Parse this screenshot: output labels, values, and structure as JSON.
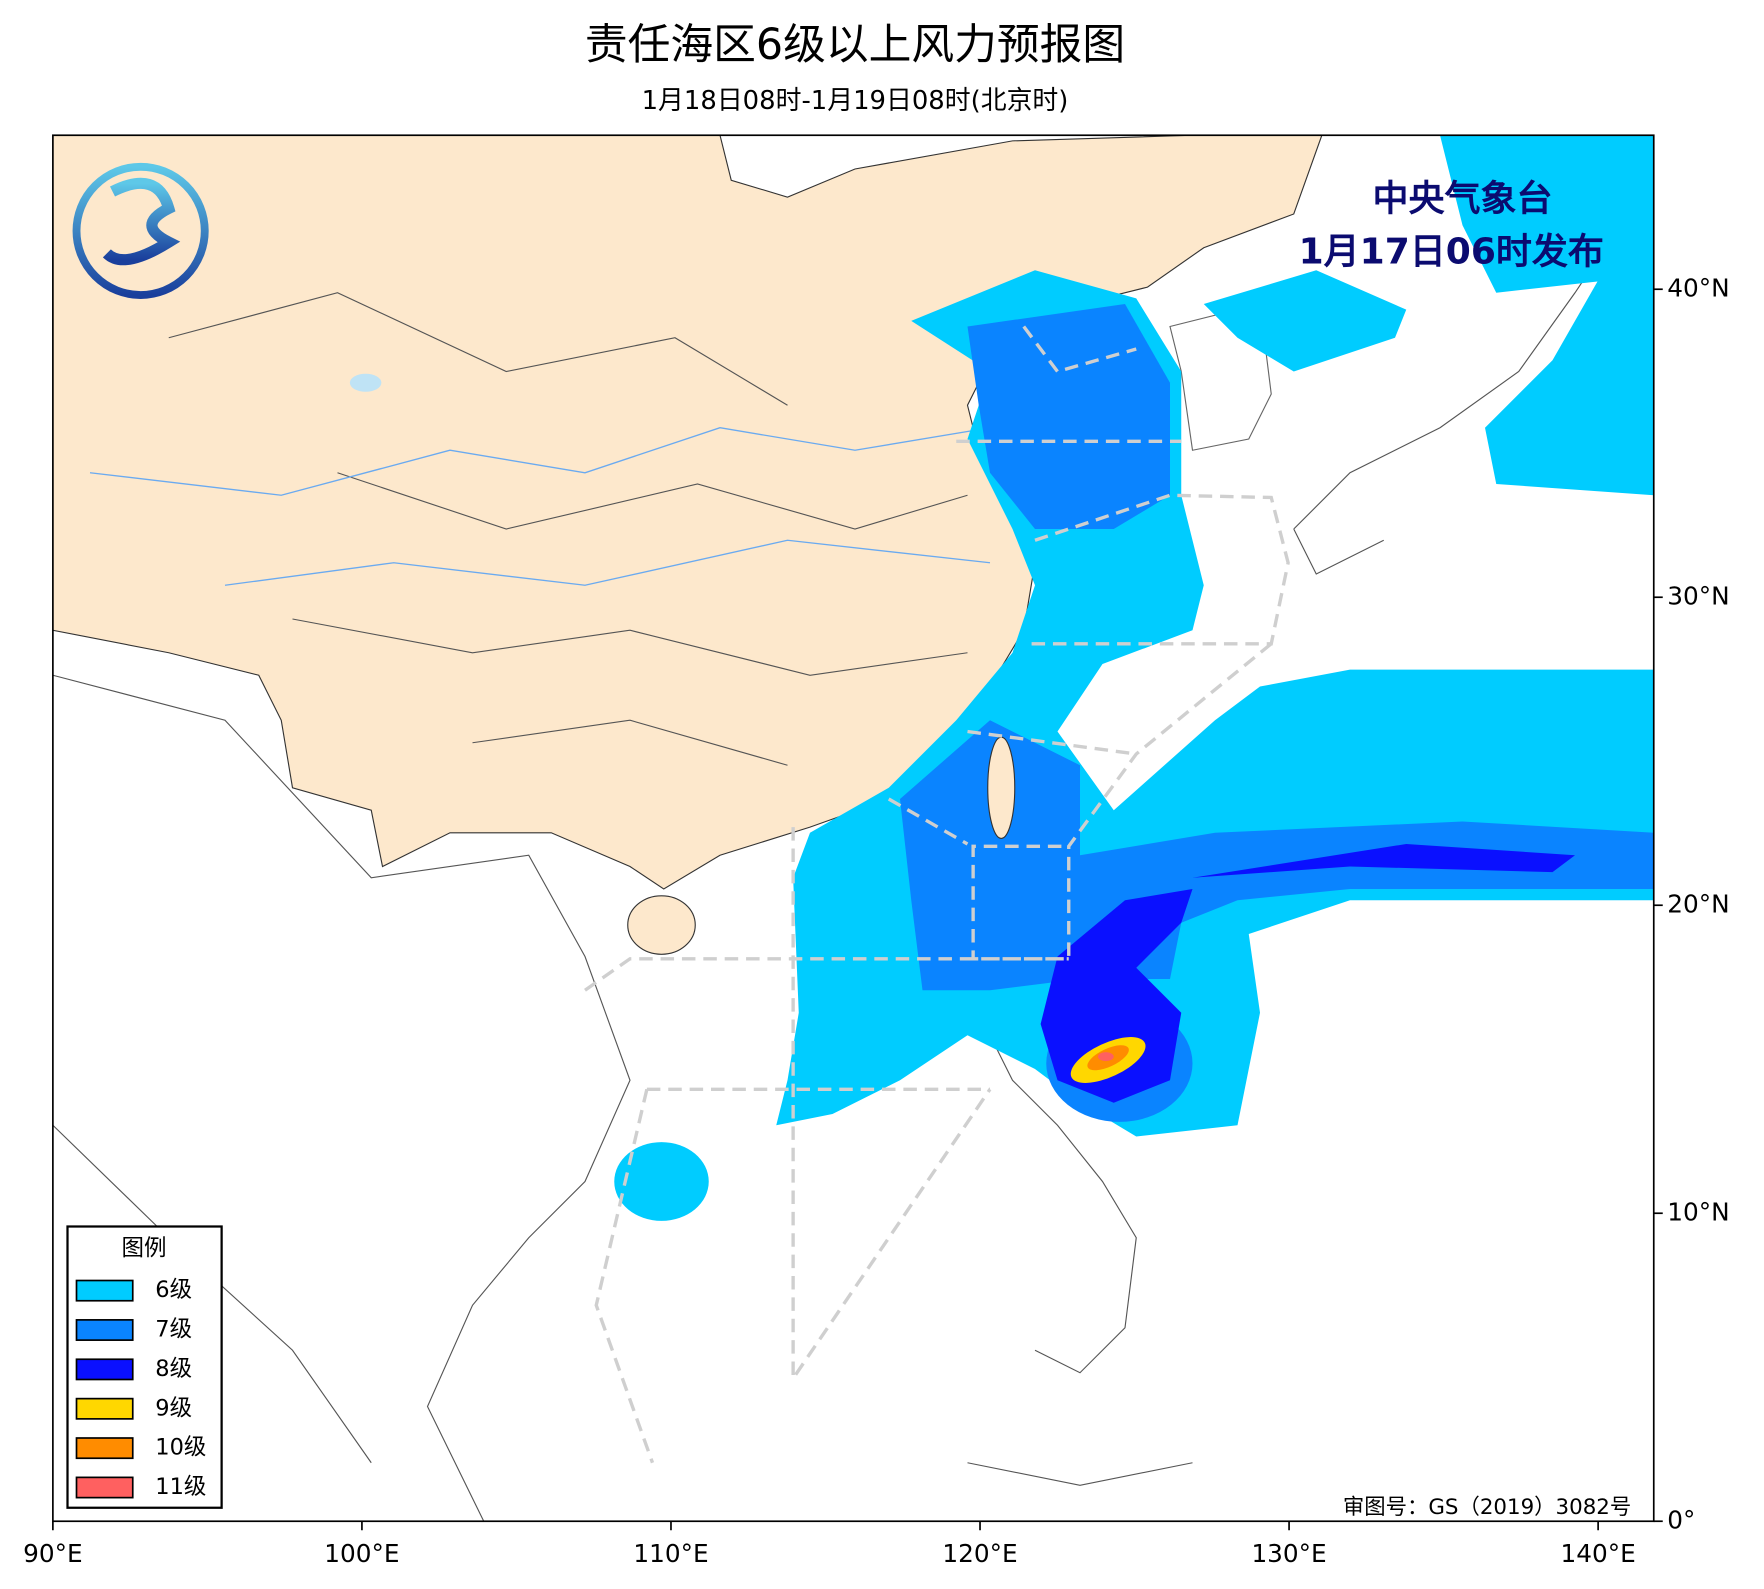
{
  "header": {
    "title": "责任海区6级以上风力预报图",
    "subtitle": "1月18日08时-1月19日08时(北京时)"
  },
  "issuer": {
    "name": "中央气象台",
    "time": "1月17日06时发布"
  },
  "map": {
    "xlim": [
      90,
      141.8
    ],
    "ylim": [
      0,
      45
    ],
    "xticks": [
      {
        "value": 90,
        "label": "90°E"
      },
      {
        "value": 100,
        "label": "100°E"
      },
      {
        "value": 110,
        "label": "110°E"
      },
      {
        "value": 120,
        "label": "120°E"
      },
      {
        "value": 130,
        "label": "130°E"
      },
      {
        "value": 140,
        "label": "140°E"
      }
    ],
    "yticks": [
      {
        "value": 0,
        "label": "0°"
      },
      {
        "value": 10,
        "label": "10°N"
      },
      {
        "value": 20,
        "label": "20°N"
      },
      {
        "value": 30,
        "label": "30°N"
      },
      {
        "value": 40,
        "label": "40°N"
      }
    ]
  },
  "legend": {
    "title": "图例",
    "items": [
      {
        "label": "6级",
        "color": "#00ccff"
      },
      {
        "label": "7级",
        "color": "#0a84ff"
      },
      {
        "label": "8级",
        "color": "#0a10ff"
      },
      {
        "label": "9级",
        "color": "#ffd700"
      },
      {
        "label": "10级",
        "color": "#ff8c00"
      },
      {
        "label": "11级",
        "color": "#ff6060"
      }
    ]
  },
  "footer": {
    "approval": "审图号：GS（2019）3082号"
  }
}
